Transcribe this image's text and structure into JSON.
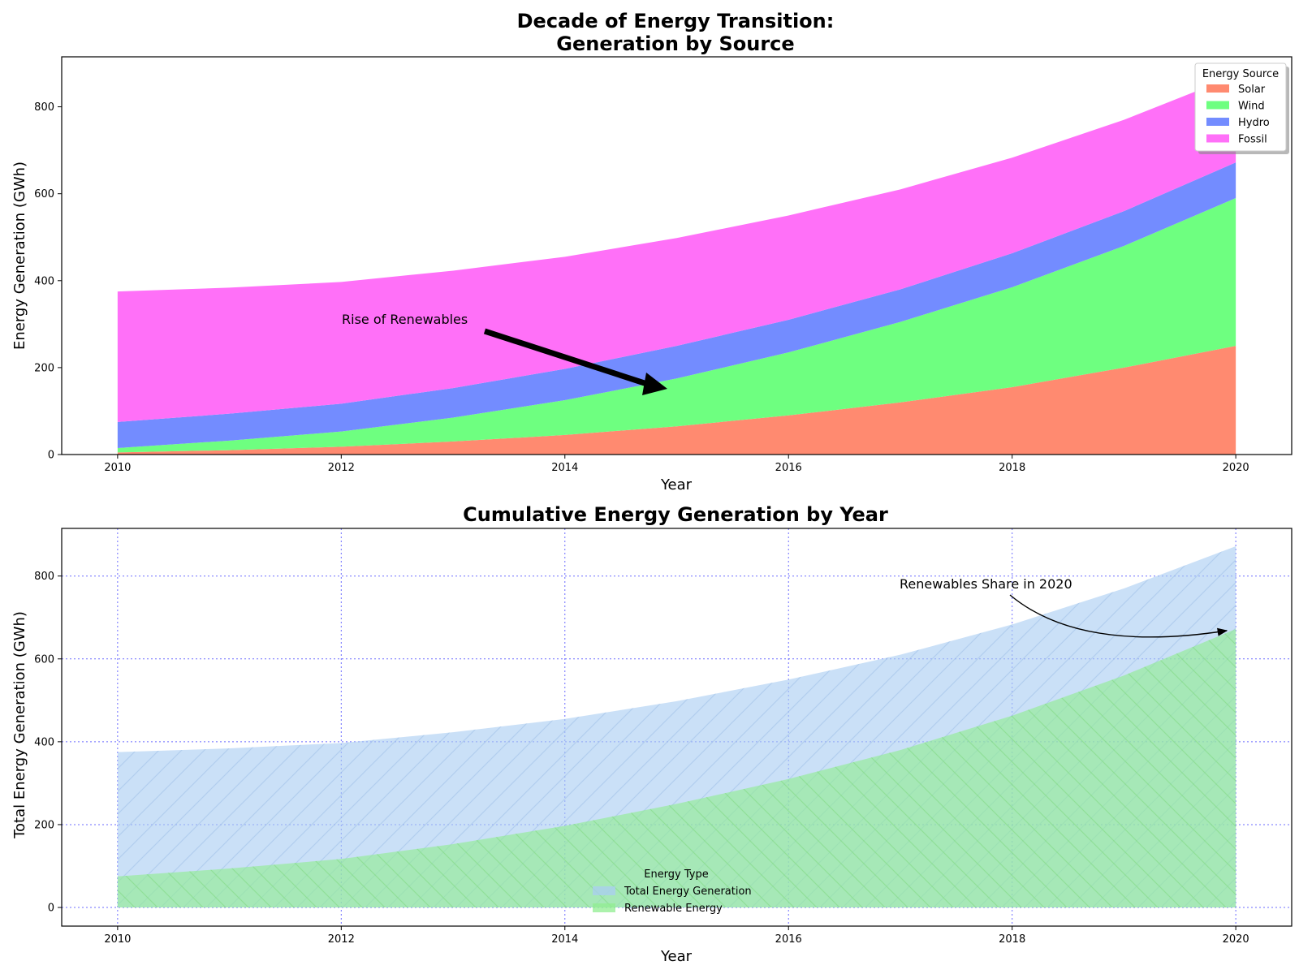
{
  "chart_data": [
    {
      "type": "area",
      "stacked": true,
      "title_lines": [
        "Decade of Energy Transition:",
        "Generation by Source"
      ],
      "xlabel": "Year",
      "ylabel": "Energy Generation (GWh)",
      "x": [
        2010,
        2011,
        2012,
        2013,
        2014,
        2015,
        2016,
        2017,
        2018,
        2019,
        2020
      ],
      "xticks": [
        "2010",
        "2012",
        "2014",
        "2016",
        "2018",
        "2020"
      ],
      "yticks": [
        "0",
        "200",
        "400",
        "600",
        "800"
      ],
      "xlim": [
        2009.5,
        2020.5
      ],
      "ylim": [
        0,
        915
      ],
      "grid": false,
      "series": [
        {
          "name": "Solar",
          "color": "#ff8a70",
          "values": [
            5,
            10,
            18,
            30,
            45,
            65,
            90,
            120,
            155,
            200,
            250
          ]
        },
        {
          "name": "Wind",
          "color": "#6eff80",
          "values": [
            10,
            22,
            35,
            55,
            80,
            110,
            145,
            185,
            230,
            280,
            340
          ]
        },
        {
          "name": "Hydro",
          "color": "#738cff",
          "values": [
            60,
            62,
            64,
            68,
            72,
            75,
            75,
            75,
            78,
            80,
            82
          ]
        },
        {
          "name": "Fossil",
          "color": "#ff70f8",
          "values": [
            300,
            290,
            280,
            270,
            258,
            248,
            240,
            230,
            220,
            210,
            200
          ]
        }
      ],
      "legend": {
        "title": "Energy Source",
        "placement": "top-right"
      },
      "annotation": {
        "text": "Rise of Renewables",
        "target_x": 2015,
        "target_y": 155
      }
    },
    {
      "type": "area",
      "stacked": false,
      "title": "Cumulative Energy Generation by Year",
      "xlabel": "Year",
      "ylabel": "Total Energy Generation (GWh)",
      "x": [
        2010,
        2011,
        2012,
        2013,
        2014,
        2015,
        2016,
        2017,
        2018,
        2019,
        2020
      ],
      "xticks": [
        "2010",
        "2012",
        "2014",
        "2016",
        "2018",
        "2020"
      ],
      "yticks": [
        "0",
        "200",
        "400",
        "600",
        "800"
      ],
      "xlim": [
        2009.5,
        2020.5
      ],
      "ylim": [
        -45,
        915
      ],
      "grid": true,
      "series": [
        {
          "name": "Total Energy Generation",
          "color": "#aacdf2",
          "values": [
            375,
            384,
            397,
            423,
            455,
            498,
            550,
            610,
            683,
            770,
            872
          ]
        },
        {
          "name": "Renewable Energy",
          "color": "#90ee90",
          "values": [
            75,
            94,
            117,
            153,
            197,
            250,
            310,
            380,
            463,
            560,
            672
          ]
        }
      ],
      "legend": {
        "title": "Energy Type",
        "placement": "lower-center"
      },
      "annotation": {
        "text": "Renewables Share in 2020",
        "target_x": 2020,
        "target_y": 672
      }
    }
  ]
}
